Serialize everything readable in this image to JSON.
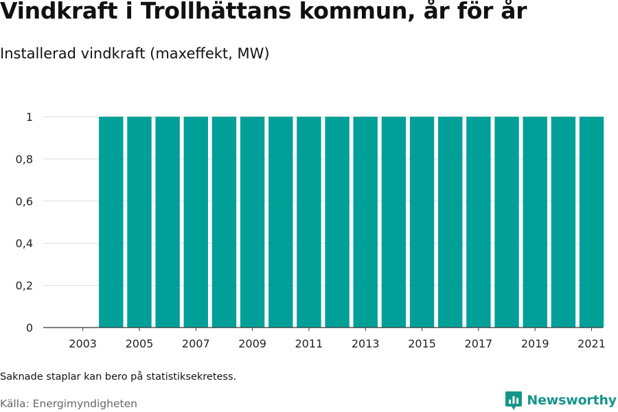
{
  "title": "Vindkraft i Trollhättans kommun, år för år",
  "subtitle": "Installerad vindkraft (maxeffekt, MW)",
  "note": "Saknade staplar kan bero på statistiksekretess.",
  "source": "Källa: Energimyndigheten",
  "brand": {
    "name": "Newsworthy",
    "color": "#16958a",
    "icon": "newsworthy-logo-icon"
  },
  "colors": {
    "bar": "#00a099",
    "grid": "#dcdcdc",
    "axis": "#333333",
    "tick_text": "#222222"
  },
  "chart_data": {
    "type": "bar",
    "title": "Vindkraft i Trollhättans kommun, år för år",
    "ylabel": "Installerad vindkraft (maxeffekt, MW)",
    "xlabel": "",
    "categories": [
      "2003",
      "2004",
      "2005",
      "2006",
      "2007",
      "2008",
      "2009",
      "2010",
      "2011",
      "2012",
      "2013",
      "2014",
      "2015",
      "2016",
      "2017",
      "2018",
      "2019",
      "2020",
      "2021"
    ],
    "values": [
      0,
      1,
      1,
      1,
      1,
      1,
      1,
      1,
      1,
      1,
      1,
      1,
      1,
      1,
      1,
      1,
      1,
      1,
      1
    ],
    "x_tick_labels": [
      "2003",
      "2005",
      "2007",
      "2009",
      "2011",
      "2013",
      "2015",
      "2017",
      "2019",
      "2021"
    ],
    "y_ticks": [
      0,
      0.2,
      0.4,
      0.6,
      0.8,
      1
    ],
    "y_tick_labels": [
      "0",
      "0,2",
      "0,4",
      "0,6",
      "0,8",
      "1"
    ],
    "ylim": [
      0,
      1
    ],
    "grid": true,
    "legend": "none"
  }
}
